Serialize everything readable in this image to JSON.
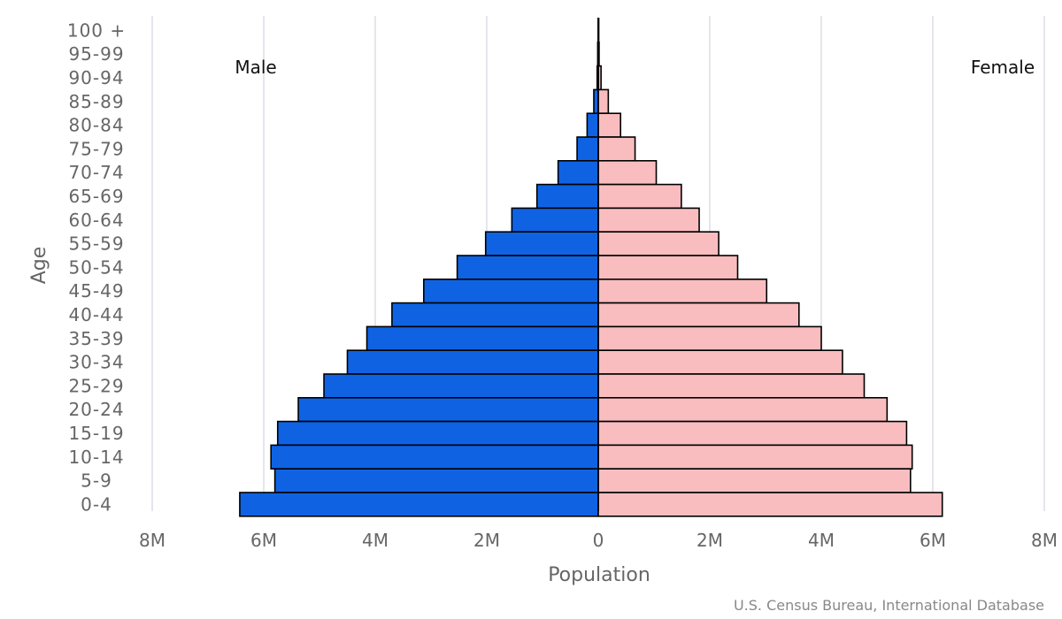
{
  "chart_data": {
    "type": "bar",
    "orientation": "horizontal",
    "subtype": "population-pyramid",
    "categories": [
      "100 +",
      "95-99",
      "90-94",
      "85-89",
      "80-84",
      "75-79",
      "70-74",
      "65-69",
      "60-64",
      "55-59",
      "50-54",
      "45-49",
      "40-44",
      "35-39",
      "30-34",
      "25-29",
      "20-24",
      "15-19",
      "10-14",
      "5-9",
      "0-4"
    ],
    "series": [
      {
        "name": "Male",
        "color": "#0f63e3",
        "values": [
          0.002,
          0.01,
          0.02,
          0.08,
          0.2,
          0.38,
          0.72,
          1.1,
          1.55,
          2.02,
          2.53,
          3.13,
          3.7,
          4.15,
          4.5,
          4.92,
          5.38,
          5.75,
          5.87,
          5.8,
          6.43
        ]
      },
      {
        "name": "Female",
        "color": "#f9bdbf",
        "values": [
          0.003,
          0.015,
          0.05,
          0.18,
          0.4,
          0.66,
          1.04,
          1.49,
          1.81,
          2.16,
          2.5,
          3.02,
          3.6,
          4.0,
          4.38,
          4.77,
          5.18,
          5.53,
          5.63,
          5.6,
          6.17
        ]
      }
    ],
    "xlabel": "Population",
    "ylabel": "Age",
    "xlim": [
      -8,
      8
    ],
    "x_unit": "millions",
    "x_ticks": [
      "8M",
      "6M",
      "4M",
      "2M",
      "0",
      "2M",
      "4M",
      "6M",
      "8M"
    ],
    "side_labels": {
      "left": "Male",
      "right": "Female"
    },
    "grid": true,
    "legend": "none",
    "source": "U.S. Census Bureau, International Database"
  }
}
